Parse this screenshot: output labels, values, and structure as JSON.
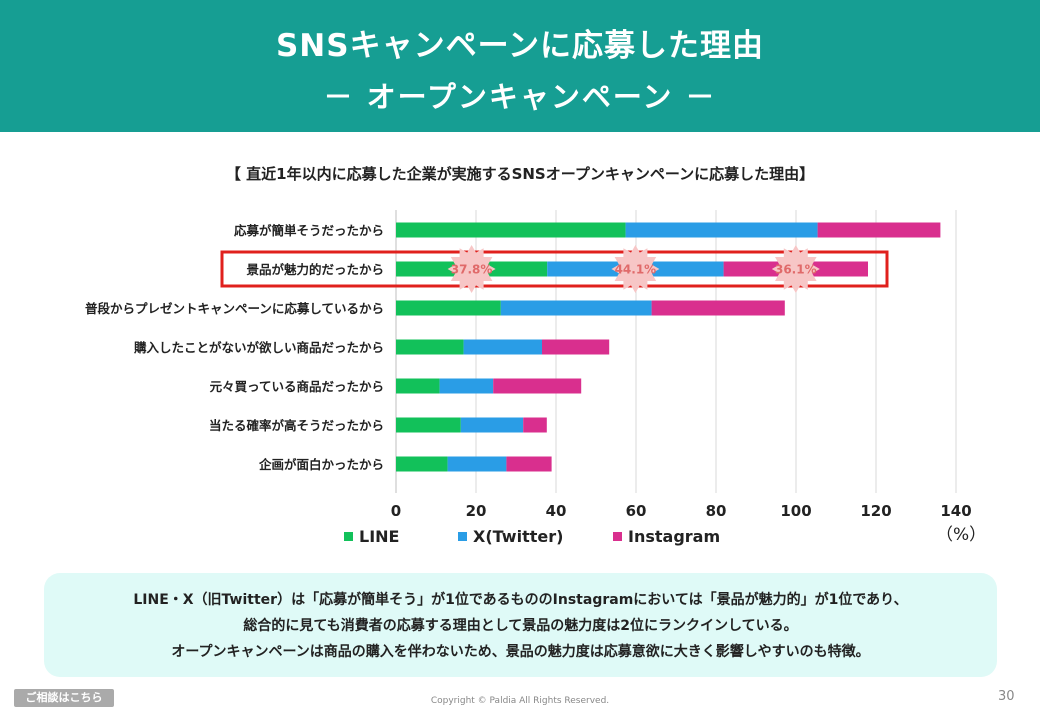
{
  "header": {
    "title": "SNSキャンペーンに応募した理由",
    "subtitle": "－ オープンキャンペーン －"
  },
  "chart_title": "【 直近1年以内に応募した企業が実施するSNSオープンキャンペーンに応募した理由】",
  "chart_data": {
    "type": "bar",
    "orientation": "horizontal",
    "stacked": true,
    "categories": [
      "応募が簡単そうだったから",
      "景品が魅力的だったから",
      "普段からプレゼントキャンペーンに応募しているから",
      "購入したことがないが欲しい商品だったから",
      "元々買っている商品だったから",
      "当たる確率が高そうだったから",
      "企画が面白かったから"
    ],
    "series": [
      {
        "name": "LINE",
        "color": "#12c15a",
        "values": [
          57.4,
          37.8,
          26.2,
          16.9,
          10.9,
          16.2,
          12.9
        ]
      },
      {
        "name": "X(Twitter)",
        "color": "#2a9de6",
        "values": [
          48.0,
          44.1,
          37.7,
          19.6,
          13.4,
          15.6,
          14.7
        ]
      },
      {
        "name": "Instagram",
        "color": "#d92f8e",
        "values": [
          30.7,
          36.1,
          33.3,
          16.8,
          22.0,
          5.9,
          11.3
        ]
      }
    ],
    "highlight": {
      "category": "景品が魅力的だったから",
      "labels": [
        "37.8%",
        "44.1%",
        "36.1%"
      ],
      "badge_color": "#f7c6c6",
      "label_color": "#e06a6a",
      "box_color": "#e0201d"
    },
    "x_ticks": [
      0,
      20,
      40,
      60,
      80,
      100,
      120,
      140
    ],
    "xlim": [
      0,
      140
    ],
    "unit": "（%）",
    "grid": true,
    "legend_position": "bottom"
  },
  "note": {
    "line1": "LINE・X（旧Twitter）は「応募が簡単そう」が1位であるもののInstagramにおいては「景品が魅力的」が1位であり、",
    "line2": "総合的に見ても消費者の応募する理由として景品の魅力度は2位にランクインしている。",
    "line3": "オープンキャンペーンは商品の購入を伴わないため、景品の魅力度は応募意欲に大きく影響しやすいのも特徴。"
  },
  "footer": {
    "consult_button": "ご相談はこちら",
    "copyright": "Copyright © Paldia All Rights Reserved.",
    "page_number": "30"
  }
}
